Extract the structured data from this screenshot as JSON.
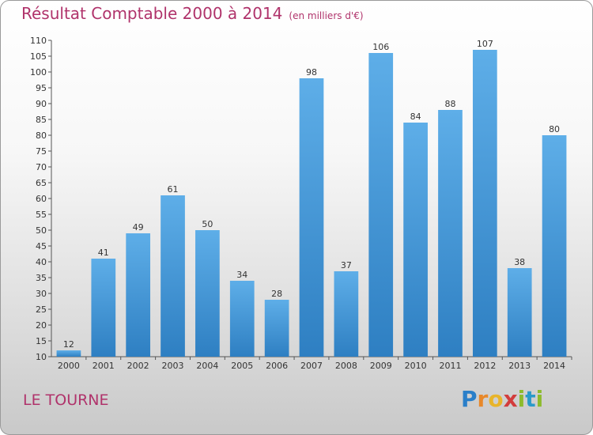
{
  "header": {
    "title": "Résultat Comptable 2000 à 2014",
    "subtitle": "(en milliers d'€)"
  },
  "footer": {
    "city": "LE TOURNE",
    "logo_text": "Proxiti",
    "logo_letters": [
      "P",
      "r",
      "o",
      "x",
      "i",
      "t",
      "i"
    ],
    "logo_colors": [
      "#2a7fc9",
      "#e8882a",
      "#e8b42a",
      "#d23c3c",
      "#8dbb2c",
      "#2a9ac9",
      "#8dbb2c"
    ]
  },
  "colors": {
    "bar_light": "#5eaee8",
    "bar_dark": "#2e7fc2",
    "accent": "#b0336b"
  },
  "chart_data": {
    "type": "bar",
    "title": "Résultat Comptable 2000 à 2014",
    "subtitle": "(en milliers d'€)",
    "xlabel": "",
    "ylabel": "",
    "categories": [
      "2000",
      "2001",
      "2002",
      "2003",
      "2004",
      "2005",
      "2006",
      "2007",
      "2008",
      "2009",
      "2010",
      "2011",
      "2012",
      "2013",
      "2014"
    ],
    "values": [
      12,
      41,
      49,
      61,
      50,
      34,
      28,
      98,
      37,
      106,
      84,
      88,
      107,
      38,
      80
    ],
    "ylim": [
      10,
      110
    ],
    "yticks": [
      10,
      15,
      20,
      25,
      30,
      35,
      40,
      45,
      50,
      55,
      60,
      65,
      70,
      75,
      80,
      85,
      90,
      95,
      100,
      105,
      110
    ],
    "grid": false,
    "legend": "none",
    "data_labels": true
  }
}
